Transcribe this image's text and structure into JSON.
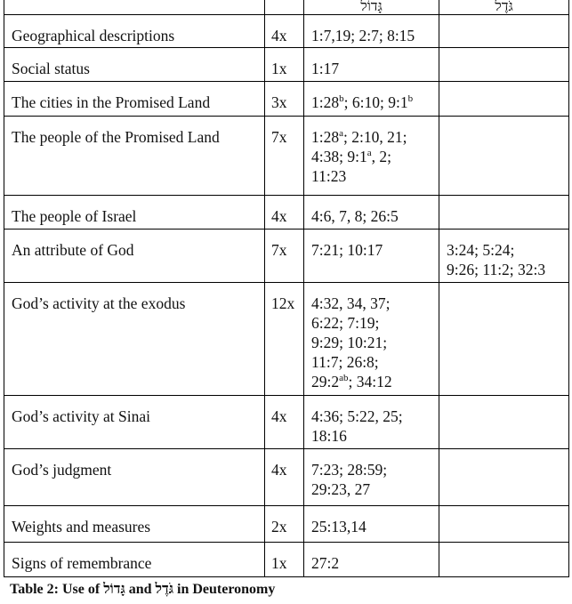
{
  "header": {
    "col3": "גָּדוֹל",
    "col4": "גֹּדֶל"
  },
  "rows": [
    {
      "label": "Geographical descriptions",
      "count": "4x",
      "refs": "1:7,19; 2:7; 8:15",
      "refs2": ""
    },
    {
      "label": "Social status",
      "count": "1x",
      "refs": "1:17",
      "refs2": ""
    },
    {
      "label": "The cities in the Promised Land",
      "count": "3x",
      "refs": "1:28<sup>b</sup>; 6:10; 9:1<sup>b</sup>",
      "refs2": ""
    },
    {
      "label": "The people of the Promised Land",
      "count": "7x",
      "refs": "1:28<sup>a</sup>; 2:10, 21;<br>4:38; 9:1<sup>a</sup>, 2;<br>11:23",
      "refs2": ""
    },
    {
      "label": "The people of Israel",
      "count": "4x",
      "refs": "4:6, 7, 8; 26:5",
      "refs2": ""
    },
    {
      "label": "An attribute of God",
      "count": "7x",
      "refs": "7:21; 10:17",
      "refs2": "3:24; 5:24;<br>9:26; 11:2; 32:3"
    },
    {
      "label": "God’s activity at the exodus",
      "count": "12x",
      "refs": "4:32, 34, 37;<br>6:22; 7:19;<br>9:29; 10:21;<br>11:7; 26:8;<br>29:2<sup>ab</sup>; 34:12",
      "refs2": ""
    },
    {
      "label": "God’s activity at Sinai",
      "count": "4x",
      "refs": "4:36; 5:22, 25;<br>18:16",
      "refs2": ""
    },
    {
      "label": "God’s judgment",
      "count": "4x",
      "refs": "7:23; 28:59;<br>29:23, 27",
      "refs2": ""
    },
    {
      "label": "Weights and measures",
      "count": "2x",
      "refs": "25:13,14",
      "refs2": ""
    },
    {
      "label": "Signs of remembrance",
      "count": "1x",
      "refs": "27:2",
      "refs2": ""
    }
  ],
  "caption": "Table 2: Use of גָּדוֹל and גֹּדֶל in Deuteronomy"
}
